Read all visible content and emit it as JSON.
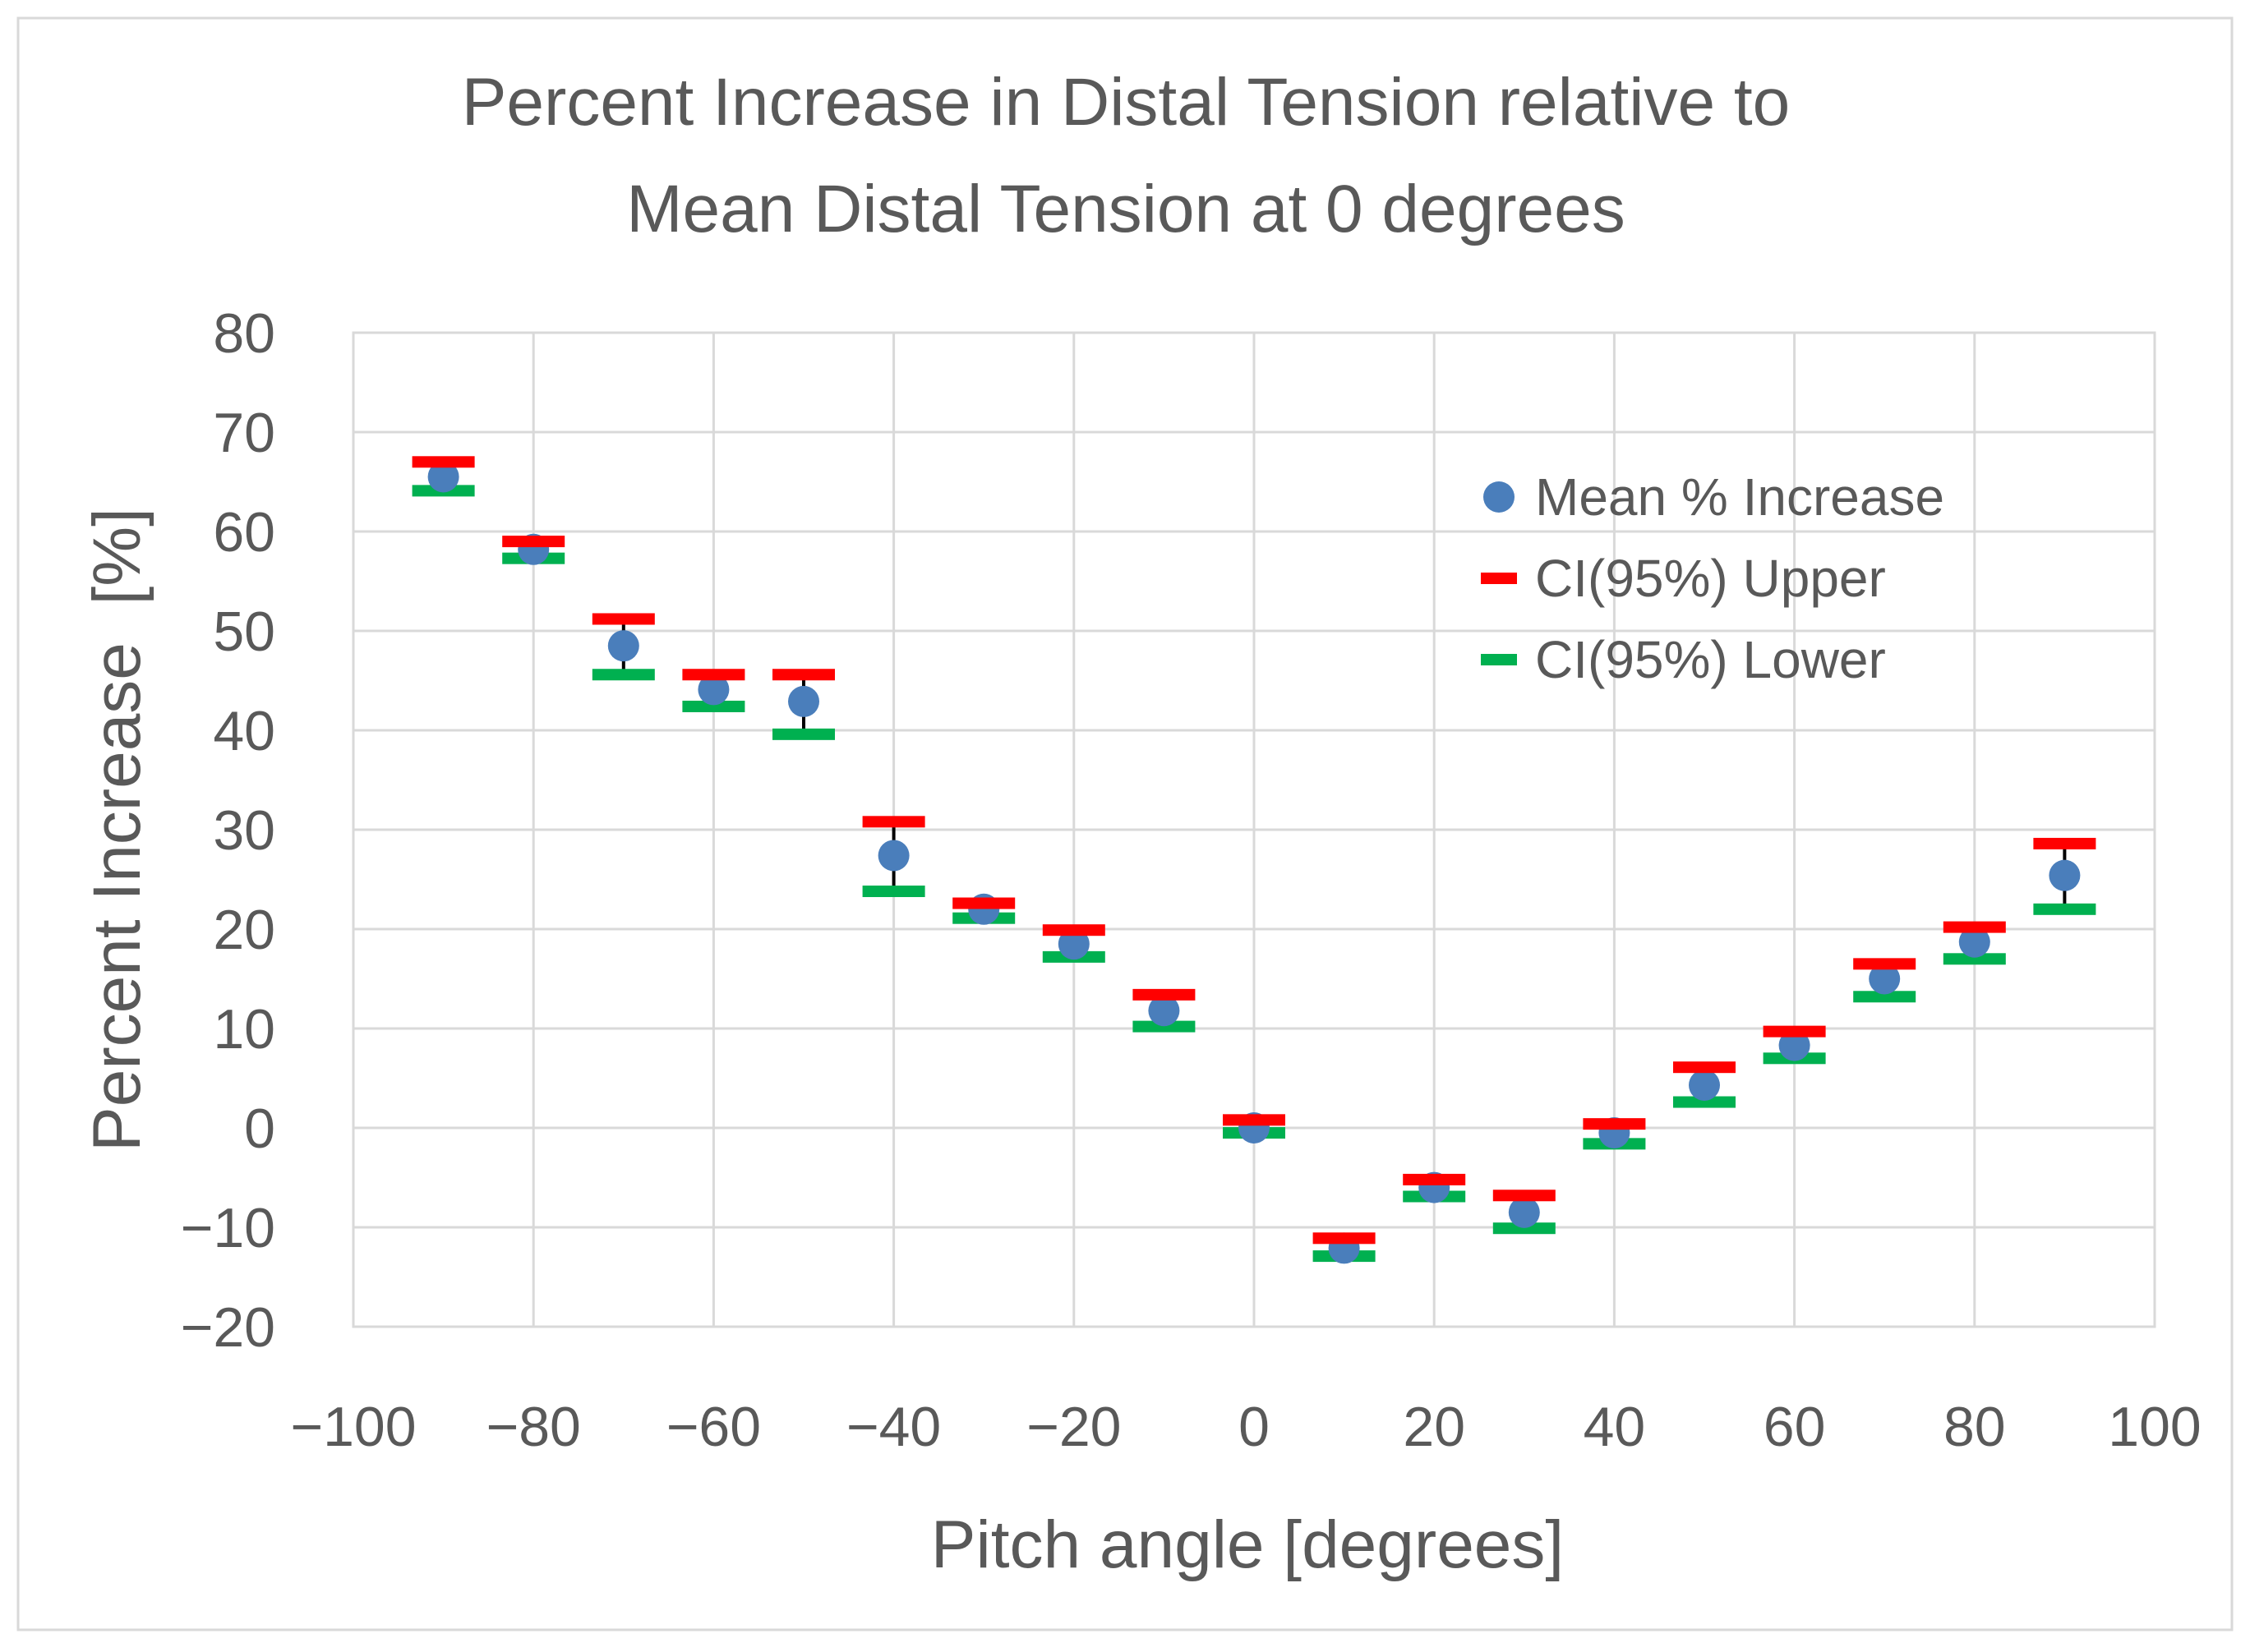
{
  "chart_data": {
    "type": "scatter",
    "title": "Percent Increase in Distal Tension relative to Mean Distal Tension at 0 degrees",
    "title_lines": [
      "Percent Increase in Distal Tension relative to",
      "Mean Distal Tension at 0 degrees"
    ],
    "xlabel": "Pitch angle [degrees]",
    "ylabel": "Percent Increase  [%]",
    "xlim": [
      -100,
      100
    ],
    "ylim": [
      -20,
      80
    ],
    "xticks": [
      -100,
      -80,
      -60,
      -40,
      -20,
      0,
      20,
      40,
      60,
      80,
      100
    ],
    "yticks": [
      -20,
      -10,
      0,
      10,
      20,
      30,
      40,
      50,
      60,
      70,
      80
    ],
    "xtick_labels": [
      "−100",
      "−80",
      "−60",
      "−40",
      "−20",
      "0",
      "20",
      "40",
      "60",
      "80",
      "100"
    ],
    "ytick_labels": [
      "−20",
      "−10",
      "0",
      "10",
      "20",
      "30",
      "40",
      "50",
      "60",
      "70",
      "80"
    ],
    "grid": true,
    "legend_position": "top-right",
    "x": [
      -90,
      -80,
      -70,
      -60,
      -50,
      -40,
      -30,
      -20,
      -10,
      0,
      10,
      20,
      30,
      40,
      50,
      60,
      70,
      80,
      90
    ],
    "series": [
      {
        "name": "Mean % Increase",
        "marker": "circle",
        "color": "#4a7ebb",
        "values": [
          65.5,
          58.2,
          48.5,
          44.1,
          42.9,
          27.4,
          22.0,
          18.5,
          11.8,
          0.0,
          -12.1,
          -6.0,
          -8.5,
          -0.5,
          4.3,
          8.3,
          15.0,
          18.7,
          25.4
        ]
      },
      {
        "name": "CI(95%) Upper",
        "marker": "dash",
        "color": "#ff0000",
        "values": [
          67.0,
          59.0,
          51.2,
          45.6,
          45.6,
          30.8,
          22.6,
          19.9,
          13.4,
          0.8,
          -11.1,
          -5.2,
          -6.8,
          0.4,
          6.1,
          9.7,
          16.5,
          20.2,
          28.6
        ]
      },
      {
        "name": "CI(95%) Lower",
        "marker": "dash",
        "color": "#00b050",
        "values": [
          64.1,
          57.3,
          45.6,
          42.4,
          39.6,
          23.8,
          21.1,
          17.2,
          10.2,
          -0.5,
          -12.9,
          -6.9,
          -10.1,
          -1.6,
          2.6,
          7.0,
          13.2,
          17.0,
          22.0
        ]
      }
    ]
  }
}
